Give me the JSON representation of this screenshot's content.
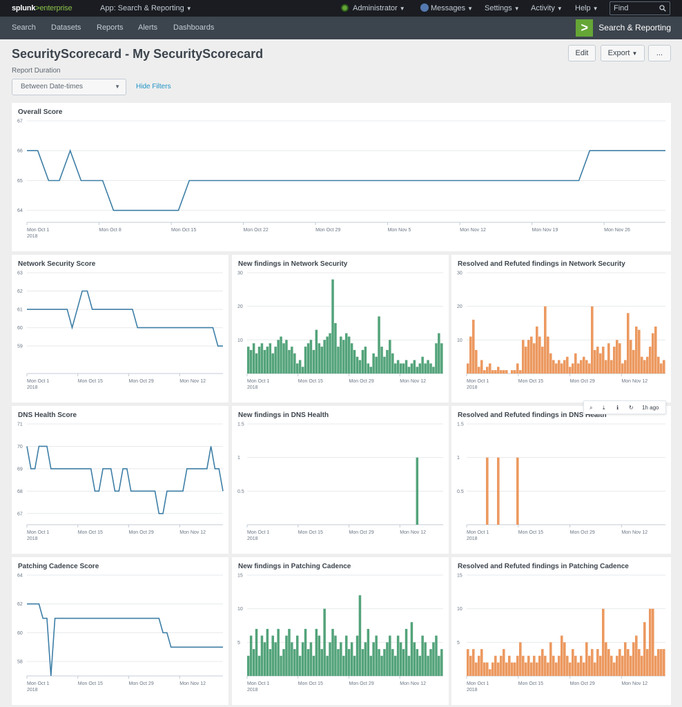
{
  "topbar": {
    "logo_brand": "splunk",
    "logo_sep": ">",
    "logo_product": "enterprise",
    "app_menu": "App: Search & Reporting",
    "user_menu": "Administrator",
    "messages": "Messages",
    "settings": "Settings",
    "activity": "Activity",
    "help": "Help",
    "find_placeholder": "Find"
  },
  "appbar": {
    "nav": [
      "Search",
      "Datasets",
      "Reports",
      "Alerts",
      "Dashboards"
    ],
    "app_title": "Search & Reporting"
  },
  "dashboard": {
    "title": "SecurityScorecard - My SecurityScorecard",
    "edit": "Edit",
    "export": "Export",
    "more": "...",
    "input_label": "Report Duration",
    "dropdown_value": "Between Date-times",
    "hide_filters": "Hide Filters"
  },
  "panel_toolbar": {
    "time": "1h ago"
  },
  "colors": {
    "line": "#3d7ea6",
    "green_bar": "#53a37a",
    "orange_bar": "#ec9960",
    "grid": "#e6e9ec",
    "accent": "#65a637"
  },
  "panels": [
    {
      "title": "Overall Score",
      "chart_data": {
        "type": "line",
        "ylim": [
          63.6,
          67
        ],
        "yticks": [
          "67",
          "66",
          "65",
          "64"
        ],
        "ytick_values": [
          67,
          66,
          65,
          64
        ],
        "xticks": [
          "Mon Oct 1\n2018",
          "Mon Oct 8",
          "Mon Oct 15",
          "Mon Oct 22",
          "Mon Oct 29",
          "Mon Nov 5",
          "Mon Nov 12",
          "Mon Nov 19",
          "Mon Nov 26"
        ],
        "n": 60,
        "values": [
          66,
          66,
          65,
          65,
          66,
          65,
          65,
          65,
          64,
          64,
          64,
          64,
          64,
          64,
          64,
          65,
          65,
          65,
          65,
          65,
          65,
          65,
          65,
          65,
          65,
          65,
          65,
          65,
          65,
          65,
          65,
          65,
          65,
          65,
          65,
          65,
          65,
          65,
          65,
          65,
          65,
          65,
          65,
          65,
          65,
          65,
          65,
          65,
          65,
          65,
          65,
          65,
          66,
          66,
          66,
          66,
          66,
          66,
          66,
          66
        ]
      }
    },
    {
      "title": "Network Security Score",
      "chart_data": {
        "type": "line",
        "ylim": [
          57.5,
          63
        ],
        "yticks": [
          "63",
          "62",
          "61",
          "60",
          "59"
        ],
        "ytick_values": [
          63,
          62,
          61,
          60,
          59
        ],
        "xticks": [
          "Mon Oct 1\n2018",
          "Mon Oct 15",
          "Mon Oct 29",
          "Mon Nov 12"
        ],
        "n": 40,
        "values": [
          61,
          61,
          61,
          61,
          61,
          61,
          61,
          61,
          61,
          60,
          61,
          62,
          62,
          61,
          61,
          61,
          61,
          61,
          61,
          61,
          61,
          61,
          60,
          60,
          60,
          60,
          60,
          60,
          60,
          60,
          60,
          60,
          60,
          60,
          60,
          60,
          60,
          60,
          59,
          59
        ]
      }
    },
    {
      "title": "New findings in Network Security",
      "chart_data": {
        "type": "bar",
        "ylim": [
          0,
          30
        ],
        "yticks": [
          "30",
          "20",
          "10"
        ],
        "ytick_values": [
          30,
          20,
          10
        ],
        "xticks": [
          "Mon Oct 1\n2018",
          "Mon Oct 15",
          "Mon Oct 29",
          "Mon Nov 12"
        ],
        "values": [
          8,
          7,
          9,
          6,
          8,
          9,
          7,
          8,
          9,
          6,
          8,
          10,
          11,
          9,
          10,
          7,
          8,
          6,
          3,
          4,
          2,
          8,
          9,
          10,
          7,
          13,
          9,
          8,
          10,
          11,
          12,
          28,
          15,
          8,
          11,
          10,
          12,
          11,
          9,
          7,
          5,
          4,
          7,
          8,
          3,
          2,
          6,
          5,
          17,
          8,
          5,
          7,
          10,
          6,
          3,
          4,
          3,
          3,
          4,
          2,
          3,
          4,
          2,
          3,
          5,
          3,
          4,
          3,
          2,
          9,
          12,
          9
        ]
      }
    },
    {
      "title": "Resolved and Refuted findings in Network Security",
      "chart_data": {
        "type": "bar",
        "ylim": [
          0,
          30
        ],
        "yticks": [
          "30",
          "20",
          "10"
        ],
        "ytick_values": [
          30,
          20,
          10
        ],
        "xticks": [
          "Mon Oct 1\n2018",
          "Mon Oct 15",
          "Mon Oct 29",
          "Mon Nov 12"
        ],
        "values": [
          3,
          11,
          16,
          7,
          2,
          4,
          1,
          2,
          3,
          1,
          1,
          2,
          1,
          1,
          1,
          0,
          1,
          1,
          3,
          1,
          10,
          8,
          10,
          11,
          9,
          14,
          11,
          8,
          20,
          11,
          6,
          4,
          3,
          4,
          3,
          4,
          5,
          2,
          3,
          6,
          3,
          4,
          5,
          4,
          3,
          20,
          7,
          8,
          6,
          8,
          4,
          9,
          4,
          8,
          10,
          9,
          3,
          4,
          18,
          10,
          7,
          14,
          13,
          5,
          4,
          5,
          8,
          12,
          14,
          5,
          3,
          4
        ]
      }
    },
    {
      "title": "DNS Health Score",
      "chart_data": {
        "type": "line",
        "ylim": [
          66.5,
          71
        ],
        "yticks": [
          "71",
          "70",
          "69",
          "68",
          "67"
        ],
        "ytick_values": [
          71,
          70,
          69,
          68,
          67
        ],
        "xticks": [
          "Mon Oct 1\n2018",
          "Mon Oct 15",
          "Mon Oct 29",
          "Mon Nov 12"
        ],
        "n": 50,
        "values": [
          70,
          69,
          69,
          70,
          70,
          70,
          69,
          69,
          69,
          69,
          69,
          69,
          69,
          69,
          69,
          69,
          69,
          68,
          68,
          69,
          69,
          69,
          68,
          68,
          69,
          69,
          68,
          68,
          68,
          68,
          68,
          68,
          68,
          67,
          67,
          68,
          68,
          68,
          68,
          68,
          69,
          69,
          69,
          69,
          69,
          69,
          70,
          69,
          69,
          68
        ]
      }
    },
    {
      "title": "New findings in DNS Health",
      "chart_data": {
        "type": "bar",
        "ylim": [
          0,
          1.5
        ],
        "yticks": [
          "1.5",
          "1",
          "0.5"
        ],
        "ytick_values": [
          1.5,
          1,
          0.5
        ],
        "xticks": [
          "Mon Oct 1\n2018",
          "Mon Oct 15",
          "Mon Oct 29",
          "Mon Nov 12"
        ],
        "values": [
          0,
          0,
          0,
          0,
          0,
          0,
          0,
          0,
          0,
          0,
          0,
          0,
          0,
          0,
          0,
          0,
          0,
          0,
          0,
          0,
          0,
          0,
          0,
          0,
          0,
          0,
          0,
          0,
          0,
          0,
          0,
          0,
          0,
          0,
          0,
          0,
          0,
          0,
          0,
          0,
          0,
          0,
          0,
          0,
          0,
          0,
          0,
          0,
          0,
          0,
          0,
          0,
          0,
          0,
          0,
          0,
          0,
          0,
          0,
          0,
          0,
          0,
          1,
          0,
          0,
          0,
          0,
          0,
          0,
          0,
          0,
          0
        ]
      }
    },
    {
      "title": "Resolved and Refuted findings in DNS Health",
      "chart_data": {
        "type": "bar",
        "ylim": [
          0,
          1.5
        ],
        "yticks": [
          "1.5",
          "1",
          "0.5"
        ],
        "ytick_values": [
          1.5,
          1,
          0.5
        ],
        "xticks": [
          "Mon Oct 1\n2018",
          "Mon Oct 15",
          "Mon Oct 29",
          "Mon Nov 12"
        ],
        "values": [
          0,
          0,
          0,
          0,
          0,
          0,
          0,
          1,
          0,
          0,
          0,
          1,
          0,
          0,
          0,
          0,
          0,
          0,
          1,
          0,
          0,
          0,
          0,
          0,
          0,
          0,
          0,
          0,
          0,
          0,
          0,
          0,
          0,
          0,
          0,
          0,
          0,
          0,
          0,
          0,
          0,
          0,
          0,
          0,
          0,
          0,
          0,
          0,
          0,
          0,
          0,
          0,
          0,
          0,
          0,
          0,
          0,
          0,
          0,
          0,
          0,
          0,
          0,
          0,
          0,
          0,
          0,
          0,
          0,
          0,
          0,
          0
        ]
      }
    },
    {
      "title": "Patching Cadence Score",
      "chart_data": {
        "type": "line",
        "ylim": [
          57,
          64
        ],
        "yticks": [
          "64",
          "62",
          "60",
          "58"
        ],
        "ytick_values": [
          64,
          62,
          60,
          58
        ],
        "xticks": [
          "Mon Oct 1\n2018",
          "Mon Oct 15",
          "Mon Oct 29",
          "Mon Nov 12"
        ],
        "n": 50,
        "values": [
          62,
          62,
          62,
          62,
          61,
          61,
          57,
          61,
          61,
          61,
          61,
          61,
          61,
          61,
          61,
          61,
          61,
          61,
          61,
          61,
          61,
          61,
          61,
          61,
          61,
          61,
          61,
          61,
          61,
          61,
          61,
          61,
          61,
          61,
          60,
          60,
          59,
          59,
          59,
          59,
          59,
          59,
          59,
          59,
          59,
          59,
          59,
          59,
          59,
          59
        ]
      }
    },
    {
      "title": "New findings in Patching Cadence",
      "chart_data": {
        "type": "bar",
        "ylim": [
          0,
          15
        ],
        "yticks": [
          "15",
          "10",
          "5"
        ],
        "ytick_values": [
          15,
          10,
          5
        ],
        "xticks": [
          "Mon Oct 1\n2018",
          "Mon Oct 15",
          "Mon Oct 29",
          "Mon Nov 12"
        ],
        "values": [
          3,
          6,
          4,
          7,
          3,
          6,
          5,
          7,
          4,
          6,
          5,
          7,
          3,
          4,
          6,
          7,
          5,
          4,
          6,
          3,
          5,
          7,
          4,
          5,
          3,
          7,
          6,
          4,
          10,
          3,
          5,
          7,
          6,
          4,
          5,
          3,
          6,
          4,
          5,
          3,
          6,
          12,
          4,
          5,
          7,
          3,
          5,
          6,
          4,
          3,
          4,
          5,
          6,
          4,
          3,
          6,
          5,
          4,
          7,
          3,
          8,
          5,
          4,
          3,
          6,
          5,
          3,
          4,
          5,
          6,
          3,
          4
        ]
      }
    },
    {
      "title": "Resolved and Refuted findings in Patching Cadence",
      "chart_data": {
        "type": "bar",
        "ylim": [
          0,
          15
        ],
        "yticks": [
          "15",
          "10",
          "5"
        ],
        "ytick_values": [
          15,
          10,
          5
        ],
        "xticks": [
          "Mon Oct 1\n2018",
          "Mon Oct 15",
          "Mon Oct 29",
          "Mon Nov 12"
        ],
        "values": [
          4,
          3,
          4,
          2,
          3,
          4,
          2,
          2,
          1,
          2,
          3,
          2,
          3,
          4,
          2,
          3,
          2,
          2,
          3,
          5,
          3,
          2,
          3,
          2,
          3,
          2,
          3,
          4,
          3,
          2,
          5,
          3,
          2,
          3,
          6,
          5,
          3,
          2,
          4,
          3,
          2,
          3,
          2,
          5,
          3,
          4,
          2,
          4,
          3,
          10,
          5,
          4,
          3,
          2,
          3,
          4,
          3,
          5,
          4,
          3,
          5,
          6,
          4,
          3,
          8,
          4,
          10,
          10,
          3,
          4,
          4,
          4
        ]
      }
    }
  ]
}
